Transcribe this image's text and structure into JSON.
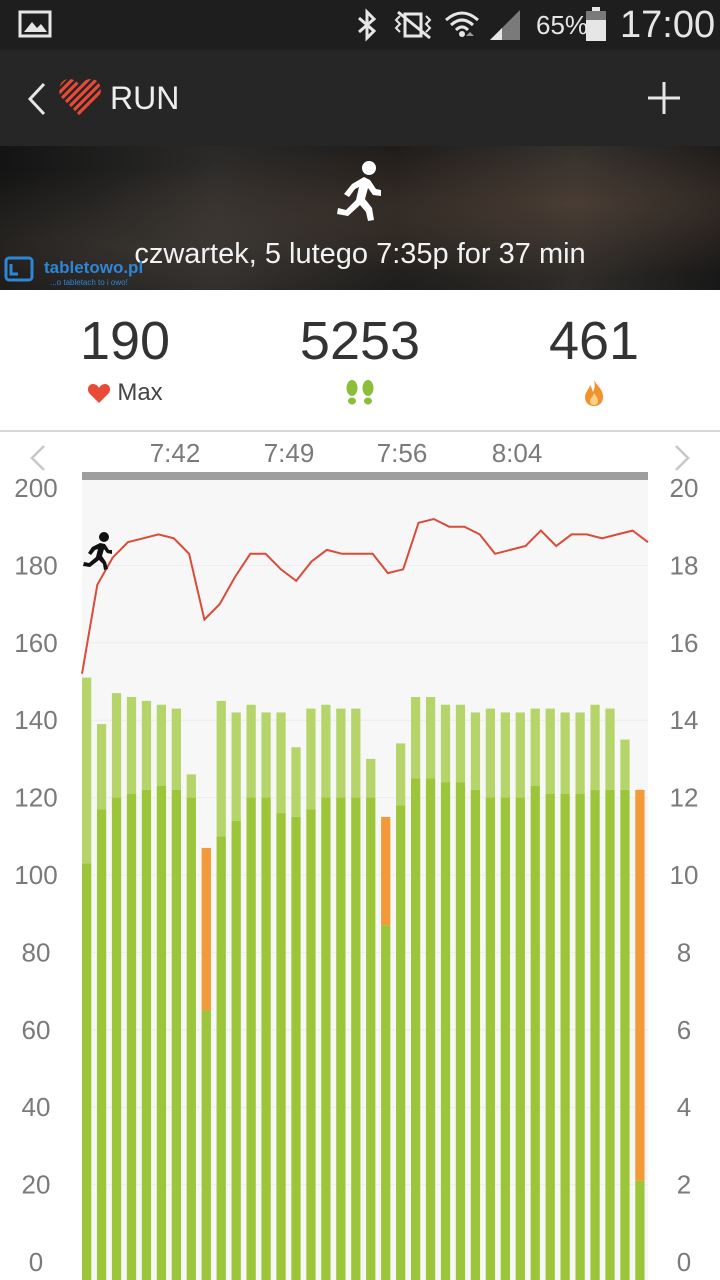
{
  "status_bar": {
    "battery_percent": "65%",
    "time": "17:00",
    "icons": [
      "gallery-icon",
      "bluetooth-icon",
      "vibrate-mute-icon",
      "wifi-icon",
      "signal-icon",
      "battery-icon"
    ]
  },
  "header": {
    "title": "RUN",
    "logo_color": "#e84a35"
  },
  "hero": {
    "activity_icon": "running-person-icon",
    "session_text": "czwartek, 5 lutego 7:35p for 37 min",
    "watermark_name": "tabletowo.pl",
    "watermark_tagline": "...o tabletach to i owo!"
  },
  "stats": {
    "heart_rate": {
      "value": "190",
      "label": "Max",
      "icon": "heart-icon",
      "color": "#e84a35"
    },
    "steps": {
      "value": "5253",
      "icon": "footsteps-icon",
      "color": "#8bbf3a"
    },
    "calories": {
      "value": "461",
      "icon": "flame-icon",
      "color": "#f2922c"
    }
  },
  "chart_data": {
    "type": "bar",
    "time_ticks": [
      "7:42",
      "7:49",
      "7:56",
      "8:04"
    ],
    "left_axis": {
      "ticks": [
        0,
        20,
        40,
        60,
        80,
        100,
        120,
        140,
        160,
        180,
        200
      ],
      "range": [
        0,
        200
      ]
    },
    "right_axis": {
      "ticks": [
        0,
        2,
        4,
        6,
        8,
        10,
        12,
        14,
        16,
        18,
        20
      ],
      "range": [
        0,
        20
      ]
    },
    "bars": [
      {
        "high": 15.1,
        "low": 10.3,
        "color": "green"
      },
      {
        "high": 13.9,
        "low": 11.7,
        "color": "green"
      },
      {
        "high": 14.7,
        "low": 12.0,
        "color": "green"
      },
      {
        "high": 14.6,
        "low": 12.1,
        "color": "green"
      },
      {
        "high": 14.5,
        "low": 12.2,
        "color": "green"
      },
      {
        "high": 14.4,
        "low": 12.3,
        "color": "green"
      },
      {
        "high": 14.3,
        "low": 12.2,
        "color": "green"
      },
      {
        "high": 12.6,
        "low": 12.0,
        "color": "green"
      },
      {
        "high": 10.7,
        "low": 6.5,
        "color": "orange"
      },
      {
        "high": 14.5,
        "low": 11.0,
        "color": "green"
      },
      {
        "high": 14.2,
        "low": 11.4,
        "color": "green"
      },
      {
        "high": 14.4,
        "low": 12.0,
        "color": "green"
      },
      {
        "high": 14.2,
        "low": 12.0,
        "color": "green"
      },
      {
        "high": 14.2,
        "low": 11.6,
        "color": "green"
      },
      {
        "high": 13.3,
        "low": 11.5,
        "color": "green"
      },
      {
        "high": 14.3,
        "low": 11.7,
        "color": "green"
      },
      {
        "high": 14.4,
        "low": 12.0,
        "color": "green"
      },
      {
        "high": 14.3,
        "low": 12.0,
        "color": "green"
      },
      {
        "high": 14.3,
        "low": 12.0,
        "color": "green"
      },
      {
        "high": 13.0,
        "low": 12.0,
        "color": "green"
      },
      {
        "high": 11.5,
        "low": 8.7,
        "color": "orange"
      },
      {
        "high": 13.4,
        "low": 11.8,
        "color": "green"
      },
      {
        "high": 14.6,
        "low": 12.5,
        "color": "green"
      },
      {
        "high": 14.6,
        "low": 12.5,
        "color": "green"
      },
      {
        "high": 14.4,
        "low": 12.4,
        "color": "green"
      },
      {
        "high": 14.4,
        "low": 12.4,
        "color": "green"
      },
      {
        "high": 14.2,
        "low": 12.2,
        "color": "green"
      },
      {
        "high": 14.3,
        "low": 12.0,
        "color": "green"
      },
      {
        "high": 14.2,
        "low": 12.0,
        "color": "green"
      },
      {
        "high": 14.2,
        "low": 12.0,
        "color": "green"
      },
      {
        "high": 14.3,
        "low": 12.3,
        "color": "green"
      },
      {
        "high": 14.3,
        "low": 12.1,
        "color": "green"
      },
      {
        "high": 14.2,
        "low": 12.1,
        "color": "green"
      },
      {
        "high": 14.2,
        "low": 12.1,
        "color": "green"
      },
      {
        "high": 14.4,
        "low": 12.2,
        "color": "green"
      },
      {
        "high": 14.3,
        "low": 12.2,
        "color": "green"
      },
      {
        "high": 13.5,
        "low": 12.2,
        "color": "green"
      },
      {
        "high": 12.2,
        "low": 2.1,
        "color": "orange"
      }
    ],
    "heart_rate_line": [
      152,
      175,
      182,
      186,
      187,
      188,
      187,
      183,
      166,
      170,
      177,
      183,
      183,
      179,
      176,
      181,
      184,
      183,
      183,
      183,
      178,
      179,
      191,
      192,
      190,
      190,
      188,
      183,
      184,
      185,
      189,
      185,
      188,
      188,
      187,
      188,
      189,
      186
    ],
    "colors": {
      "bar_light": "#b5d56a",
      "bar_dark": "#9cc53a",
      "bar_orange": "#f29a38",
      "line": "#d94b3a"
    }
  }
}
